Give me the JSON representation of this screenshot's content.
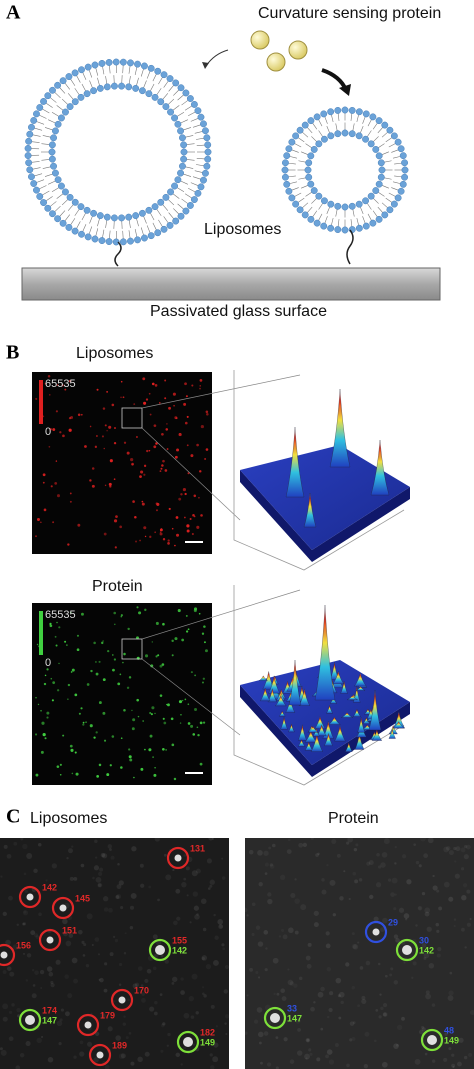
{
  "panel_a": {
    "label": "A",
    "protein_label": "Curvature sensing protein",
    "liposomes_label": "Liposomes",
    "surface_label": "Passivated glass surface"
  },
  "panel_b": {
    "label": "B",
    "liposomes": {
      "title": "Liposomes",
      "max": 65535,
      "min": 0
    },
    "protein": {
      "title": "Protein",
      "max": 65535,
      "min": 0
    }
  },
  "panel_c": {
    "label": "C",
    "left_title": "Liposomes",
    "right_title": "Protein",
    "left_spots": [
      {
        "labels": [
          "131"
        ]
      },
      {
        "labels": [
          "142"
        ]
      },
      {
        "labels": [
          "145"
        ]
      },
      {
        "labels": [
          "151"
        ]
      },
      {
        "labels": [
          "156"
        ]
      },
      {
        "labels": [
          "155",
          "142"
        ]
      },
      {
        "labels": [
          "170"
        ]
      },
      {
        "labels": [
          "174",
          "147"
        ]
      },
      {
        "labels": [
          "179"
        ]
      },
      {
        "labels": [
          "182",
          "149"
        ]
      },
      {
        "labels": [
          "189"
        ]
      }
    ],
    "right_spots": [
      {
        "labels": [
          "29"
        ]
      },
      {
        "labels": [
          "30",
          "142"
        ]
      },
      {
        "labels": [
          "33",
          "147"
        ]
      },
      {
        "labels": [
          "48",
          "149"
        ]
      }
    ]
  }
}
